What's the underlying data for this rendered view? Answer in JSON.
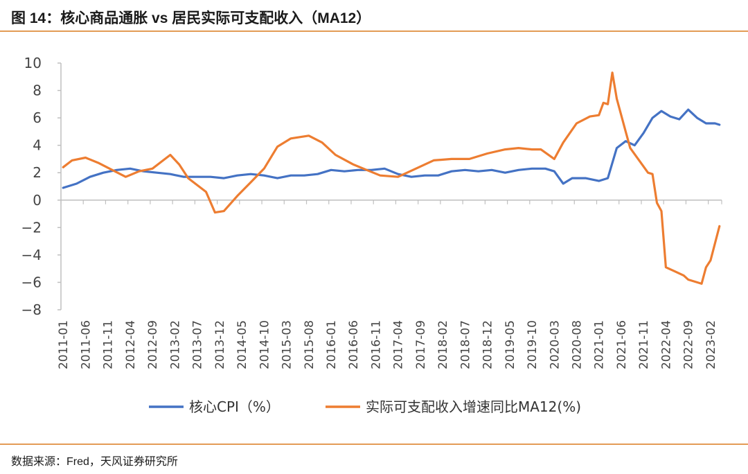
{
  "header": {
    "title": "图 14：核心商品通胀 vs 居民实际可支配收入（MA12）"
  },
  "footer": {
    "source": "数据来源：Fred，天风证券研究所"
  },
  "colors": {
    "core_cpi": "#4472c4",
    "real_income": "#ed7d31",
    "rule": "#e39b55",
    "axis": "#bfbfbf"
  },
  "chart_data": {
    "type": "line",
    "title": "",
    "xlabel": "",
    "ylabel": "",
    "ylim": [
      -8,
      10
    ],
    "yticks": [
      10,
      8,
      6,
      4,
      2,
      0,
      -2,
      -4,
      -6,
      -8
    ],
    "grid": false,
    "legend_position": "bottom",
    "x_start": "2011-01",
    "x_end": "2023-04",
    "x_tick_labels": [
      "2011-01",
      "2011-06",
      "2011-11",
      "2012-04",
      "2012-09",
      "2013-02",
      "2013-07",
      "2013-12",
      "2014-05",
      "2014-10",
      "2015-03",
      "2015-08",
      "2016-01",
      "2016-06",
      "2016-11",
      "2017-04",
      "2017-09",
      "2018-02",
      "2018-07",
      "2018-12",
      "2019-05",
      "2019-10",
      "2020-03",
      "2020-08",
      "2021-01",
      "2021-06",
      "2021-11",
      "2022-04",
      "2022-09",
      "2023-02"
    ],
    "series": [
      {
        "name": "核心CPI（%）",
        "points": [
          [
            "2011-01",
            0.9
          ],
          [
            "2011-04",
            1.2
          ],
          [
            "2011-07",
            1.7
          ],
          [
            "2011-10",
            2.0
          ],
          [
            "2012-01",
            2.2
          ],
          [
            "2012-04",
            2.3
          ],
          [
            "2012-07",
            2.1
          ],
          [
            "2012-10",
            2.0
          ],
          [
            "2013-01",
            1.9
          ],
          [
            "2013-04",
            1.7
          ],
          [
            "2013-07",
            1.7
          ],
          [
            "2013-10",
            1.7
          ],
          [
            "2014-01",
            1.6
          ],
          [
            "2014-04",
            1.8
          ],
          [
            "2014-07",
            1.9
          ],
          [
            "2014-10",
            1.8
          ],
          [
            "2015-01",
            1.6
          ],
          [
            "2015-04",
            1.8
          ],
          [
            "2015-07",
            1.8
          ],
          [
            "2015-10",
            1.9
          ],
          [
            "2016-01",
            2.2
          ],
          [
            "2016-04",
            2.1
          ],
          [
            "2016-07",
            2.2
          ],
          [
            "2016-10",
            2.2
          ],
          [
            "2017-01",
            2.3
          ],
          [
            "2017-04",
            1.9
          ],
          [
            "2017-07",
            1.7
          ],
          [
            "2017-10",
            1.8
          ],
          [
            "2018-01",
            1.8
          ],
          [
            "2018-04",
            2.1
          ],
          [
            "2018-07",
            2.2
          ],
          [
            "2018-10",
            2.1
          ],
          [
            "2019-01",
            2.2
          ],
          [
            "2019-04",
            2.0
          ],
          [
            "2019-07",
            2.2
          ],
          [
            "2019-10",
            2.3
          ],
          [
            "2020-01",
            2.3
          ],
          [
            "2020-03",
            2.1
          ],
          [
            "2020-05",
            1.2
          ],
          [
            "2020-07",
            1.6
          ],
          [
            "2020-10",
            1.6
          ],
          [
            "2021-01",
            1.4
          ],
          [
            "2021-03",
            1.6
          ],
          [
            "2021-05",
            3.8
          ],
          [
            "2021-07",
            4.3
          ],
          [
            "2021-09",
            4.0
          ],
          [
            "2021-11",
            4.9
          ],
          [
            "2022-01",
            6.0
          ],
          [
            "2022-03",
            6.5
          ],
          [
            "2022-05",
            6.1
          ],
          [
            "2022-07",
            5.9
          ],
          [
            "2022-09",
            6.6
          ],
          [
            "2022-11",
            6.0
          ],
          [
            "2023-01",
            5.6
          ],
          [
            "2023-03",
            5.6
          ],
          [
            "2023-04",
            5.5
          ]
        ]
      },
      {
        "name": "实际可支配收入增速同比MA12(%)",
        "points": [
          [
            "2011-01",
            2.4
          ],
          [
            "2011-03",
            2.9
          ],
          [
            "2011-06",
            3.1
          ],
          [
            "2011-09",
            2.7
          ],
          [
            "2011-12",
            2.2
          ],
          [
            "2012-03",
            1.7
          ],
          [
            "2012-06",
            2.1
          ],
          [
            "2012-09",
            2.3
          ],
          [
            "2012-11",
            2.8
          ],
          [
            "2013-01",
            3.3
          ],
          [
            "2013-03",
            2.6
          ],
          [
            "2013-05",
            1.6
          ],
          [
            "2013-07",
            1.1
          ],
          [
            "2013-09",
            0.6
          ],
          [
            "2013-11",
            -0.9
          ],
          [
            "2014-01",
            -0.8
          ],
          [
            "2014-04",
            0.3
          ],
          [
            "2014-07",
            1.3
          ],
          [
            "2014-10",
            2.3
          ],
          [
            "2015-01",
            3.9
          ],
          [
            "2015-04",
            4.5
          ],
          [
            "2015-08",
            4.7
          ],
          [
            "2015-11",
            4.2
          ],
          [
            "2016-02",
            3.3
          ],
          [
            "2016-06",
            2.6
          ],
          [
            "2016-09",
            2.2
          ],
          [
            "2016-12",
            1.8
          ],
          [
            "2017-04",
            1.7
          ],
          [
            "2017-08",
            2.3
          ],
          [
            "2017-12",
            2.9
          ],
          [
            "2018-04",
            3.0
          ],
          [
            "2018-08",
            3.0
          ],
          [
            "2018-12",
            3.4
          ],
          [
            "2019-04",
            3.7
          ],
          [
            "2019-07",
            3.8
          ],
          [
            "2019-10",
            3.7
          ],
          [
            "2019-12",
            3.7
          ],
          [
            "2020-03",
            3.0
          ],
          [
            "2020-05",
            4.2
          ],
          [
            "2020-08",
            5.6
          ],
          [
            "2020-11",
            6.1
          ],
          [
            "2021-01",
            6.2
          ],
          [
            "2021-02",
            7.1
          ],
          [
            "2021-03",
            7.0
          ],
          [
            "2021-04",
            9.3
          ],
          [
            "2021-05",
            7.4
          ],
          [
            "2021-07",
            5.0
          ],
          [
            "2021-08",
            3.8
          ],
          [
            "2021-10",
            2.9
          ],
          [
            "2021-12",
            2.0
          ],
          [
            "2022-01",
            1.9
          ],
          [
            "2022-02",
            -0.2
          ],
          [
            "2022-03",
            -0.8
          ],
          [
            "2022-04",
            -4.9
          ],
          [
            "2022-06",
            -5.2
          ],
          [
            "2022-08",
            -5.5
          ],
          [
            "2022-09",
            -5.8
          ],
          [
            "2022-11",
            -6.0
          ],
          [
            "2022-12",
            -6.1
          ],
          [
            "2023-01",
            -4.9
          ],
          [
            "2023-02",
            -4.4
          ],
          [
            "2023-04",
            -1.9
          ]
        ]
      }
    ]
  }
}
